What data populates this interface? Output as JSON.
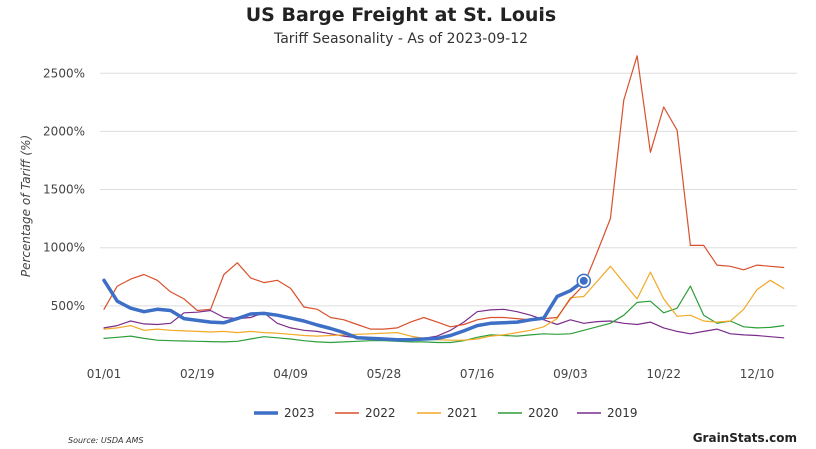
{
  "chart_data": {
    "type": "line",
    "title": "US Barge Freight at St. Louis",
    "subtitle": "Tariff Seasonality - As of 2023-09-12",
    "ylabel": "Percentage of Tariff (%)",
    "xlabel": "",
    "x_ticks": [
      "01/01",
      "02/19",
      "04/09",
      "05/28",
      "07/16",
      "09/03",
      "10/22",
      "12/10"
    ],
    "y_ticks": [
      "500%",
      "1000%",
      "1500%",
      "2000%",
      "2500%"
    ],
    "ylim": [
      0,
      2700
    ],
    "xlim_days": [
      0,
      364
    ],
    "grid": true,
    "legend_position": "bottom",
    "source": "Source: USDA AMS",
    "brand": "GrainStats.com",
    "series": [
      {
        "name": "2023",
        "color": "#3d6fc6",
        "x": [
          "01/01",
          "01/08",
          "01/15",
          "01/22",
          "01/29",
          "02/05",
          "02/12",
          "02/19",
          "02/26",
          "03/05",
          "03/12",
          "03/19",
          "03/26",
          "04/02",
          "04/09",
          "04/16",
          "04/23",
          "04/30",
          "05/07",
          "05/14",
          "05/21",
          "05/28",
          "06/04",
          "06/11",
          "06/18",
          "06/25",
          "07/02",
          "07/09",
          "07/16",
          "07/23",
          "07/30",
          "08/06",
          "08/13",
          "08/20",
          "08/27",
          "09/03",
          "09/10"
        ],
        "values": [
          720,
          540,
          480,
          450,
          470,
          460,
          390,
          375,
          360,
          355,
          390,
          430,
          435,
          420,
          395,
          370,
          335,
          305,
          270,
          225,
          220,
          215,
          208,
          210,
          215,
          220,
          245,
          285,
          330,
          350,
          355,
          360,
          380,
          395,
          580,
          630,
          715
        ]
      },
      {
        "name": "2022",
        "color": "#d9502d",
        "x": [
          "01/01",
          "01/08",
          "01/15",
          "01/22",
          "01/29",
          "02/05",
          "02/12",
          "02/19",
          "02/26",
          "03/05",
          "03/12",
          "03/19",
          "03/26",
          "04/02",
          "04/09",
          "04/16",
          "04/23",
          "04/30",
          "05/07",
          "05/14",
          "05/21",
          "05/28",
          "06/04",
          "06/11",
          "06/18",
          "06/25",
          "07/02",
          "07/09",
          "07/16",
          "07/23",
          "07/30",
          "08/06",
          "08/13",
          "08/20",
          "08/27",
          "09/03",
          "09/10",
          "09/17",
          "09/24",
          "10/01",
          "10/08",
          "10/15",
          "10/22",
          "10/29",
          "11/05",
          "11/12",
          "11/19",
          "11/26",
          "12/03",
          "12/10",
          "12/17",
          "12/24"
        ],
        "values": [
          470,
          670,
          730,
          770,
          720,
          620,
          560,
          460,
          470,
          770,
          870,
          740,
          700,
          720,
          650,
          490,
          470,
          400,
          380,
          340,
          300,
          300,
          310,
          360,
          400,
          360,
          320,
          340,
          380,
          400,
          400,
          390,
          380,
          390,
          400,
          560,
          680,
          960,
          1250,
          2270,
          2650,
          1820,
          2210,
          2010,
          1020,
          1020,
          850,
          840,
          810,
          850,
          840,
          830
        ]
      },
      {
        "name": "2021",
        "color": "#f2a925",
        "x": [
          "01/01",
          "01/08",
          "01/15",
          "01/22",
          "01/29",
          "02/05",
          "02/12",
          "02/19",
          "02/26",
          "03/05",
          "03/12",
          "03/19",
          "03/26",
          "04/02",
          "04/09",
          "04/16",
          "04/23",
          "04/30",
          "05/07",
          "05/14",
          "05/21",
          "05/28",
          "06/04",
          "06/11",
          "06/18",
          "06/25",
          "07/02",
          "07/09",
          "07/16",
          "07/23",
          "07/30",
          "08/06",
          "08/13",
          "08/20",
          "08/27",
          "09/03",
          "09/10",
          "09/17",
          "09/24",
          "10/01",
          "10/08",
          "10/15",
          "10/22",
          "10/29",
          "11/05",
          "11/12",
          "11/19",
          "11/26",
          "12/03",
          "12/10",
          "12/17",
          "12/24"
        ],
        "values": [
          300,
          310,
          330,
          290,
          300,
          290,
          285,
          280,
          275,
          280,
          270,
          280,
          270,
          265,
          255,
          245,
          240,
          245,
          250,
          255,
          260,
          265,
          270,
          240,
          220,
          210,
          205,
          205,
          215,
          240,
          250,
          270,
          290,
          320,
          390,
          570,
          580,
          710,
          840,
          700,
          560,
          790,
          560,
          410,
          420,
          370,
          360,
          370,
          470,
          640,
          720,
          650
        ]
      },
      {
        "name": "2020",
        "color": "#2e9e3a",
        "x": [
          "01/01",
          "01/08",
          "01/15",
          "01/22",
          "01/29",
          "02/05",
          "02/12",
          "02/19",
          "02/26",
          "03/05",
          "03/12",
          "03/19",
          "03/26",
          "04/02",
          "04/09",
          "04/16",
          "04/23",
          "04/30",
          "05/07",
          "05/14",
          "05/21",
          "05/28",
          "06/04",
          "06/11",
          "06/18",
          "06/25",
          "07/02",
          "07/09",
          "07/16",
          "07/23",
          "07/30",
          "08/06",
          "08/13",
          "08/20",
          "08/27",
          "09/03",
          "09/10",
          "09/17",
          "09/24",
          "10/01",
          "10/08",
          "10/15",
          "10/22",
          "10/29",
          "11/05",
          "11/12",
          "11/19",
          "11/26",
          "12/03",
          "12/10",
          "12/17",
          "12/24"
        ],
        "values": [
          220,
          230,
          240,
          220,
          205,
          200,
          198,
          195,
          193,
          190,
          195,
          215,
          235,
          225,
          215,
          200,
          190,
          185,
          190,
          195,
          200,
          200,
          195,
          190,
          190,
          185,
          185,
          200,
          230,
          250,
          245,
          240,
          250,
          260,
          255,
          260,
          290,
          320,
          350,
          420,
          530,
          540,
          440,
          480,
          670,
          420,
          350,
          370,
          320,
          310,
          315,
          330
        ]
      },
      {
        "name": "2019",
        "color": "#7b2d8b",
        "x": [
          "01/01",
          "01/08",
          "01/15",
          "01/22",
          "01/29",
          "02/05",
          "02/12",
          "02/19",
          "02/26",
          "03/05",
          "03/12",
          "03/19",
          "03/26",
          "04/02",
          "04/09",
          "04/16",
          "04/23",
          "04/30",
          "05/07",
          "05/14",
          "05/21",
          "05/28",
          "06/04",
          "06/11",
          "06/18",
          "06/25",
          "07/02",
          "07/09",
          "07/16",
          "07/23",
          "07/30",
          "08/06",
          "08/13",
          "08/20",
          "08/27",
          "09/03",
          "09/10",
          "09/17",
          "09/24",
          "10/01",
          "10/08",
          "10/15",
          "10/22",
          "10/29",
          "11/05",
          "11/12",
          "11/19",
          "11/26",
          "12/03",
          "12/10",
          "12/17",
          "12/24"
        ],
        "values": [
          310,
          330,
          370,
          345,
          340,
          350,
          440,
          445,
          460,
          400,
          390,
          400,
          440,
          350,
          310,
          290,
          280,
          260,
          240,
          225,
          215,
          210,
          205,
          210,
          220,
          240,
          290,
          360,
          450,
          465,
          470,
          450,
          420,
          380,
          340,
          380,
          350,
          365,
          370,
          350,
          340,
          360,
          310,
          280,
          260,
          280,
          300,
          260,
          250,
          245,
          235,
          225
        ]
      }
    ]
  }
}
